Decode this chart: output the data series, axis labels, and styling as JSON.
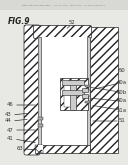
{
  "bg_color": "#e8e8e4",
  "header_bg": "#e0e0dc",
  "line_color": "#222222",
  "hatch_color": "#888888",
  "label_color": "#333333",
  "white": "#ffffff",
  "light_gray": "#cccccc",
  "mid_gray": "#aaaaaa"
}
